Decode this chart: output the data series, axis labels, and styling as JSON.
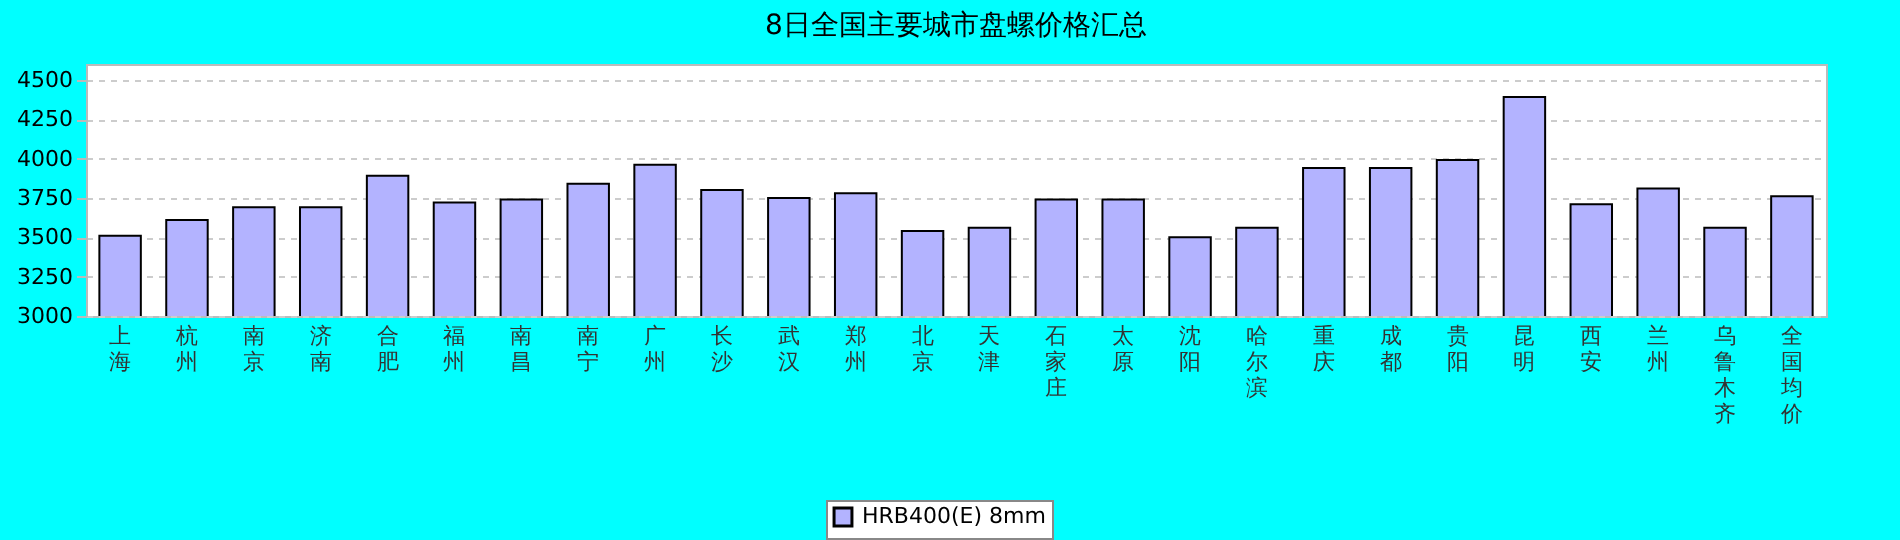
{
  "chart_data": {
    "type": "bar",
    "title": "8日全国主要城市盘螺价格汇总",
    "categories": [
      "上海",
      "杭州",
      "南京",
      "济南",
      "合肥",
      "福州",
      "南昌",
      "南宁",
      "广州",
      "长沙",
      "武汉",
      "郑州",
      "北京",
      "天津",
      "石家庄",
      "太原",
      "沈阳",
      "哈尔滨",
      "重庆",
      "成都",
      "贵阳",
      "昆明",
      "西安",
      "兰州",
      "乌鲁木齐",
      "全国均价"
    ],
    "series": [
      {
        "name": "HRB400(E) 8mm",
        "color": "#b3b3ff",
        "values": [
          3510,
          3610,
          3690,
          3690,
          3890,
          3720,
          3740,
          3840,
          3960,
          3800,
          3750,
          3780,
          3540,
          3560,
          3740,
          3740,
          3500,
          3560,
          3940,
          3940,
          3990,
          4390,
          3710,
          3810,
          3560,
          3760
        ]
      }
    ],
    "ylim": [
      3000,
      4600
    ],
    "yticks": [
      3000,
      3250,
      3500,
      3750,
      4000,
      4250,
      4500
    ],
    "grid": "y",
    "legend": "bottom"
  }
}
